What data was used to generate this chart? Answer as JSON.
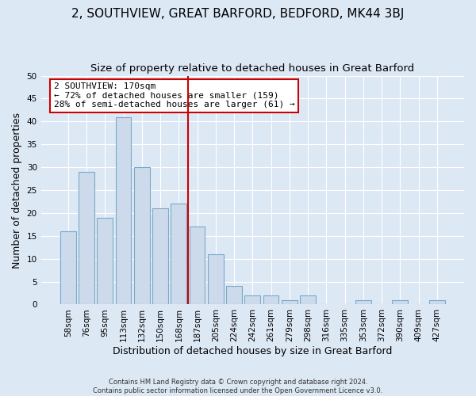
{
  "title": "2, SOUTHVIEW, GREAT BARFORD, BEDFORD, MK44 3BJ",
  "subtitle": "Size of property relative to detached houses in Great Barford",
  "xlabel": "Distribution of detached houses by size in Great Barford",
  "ylabel": "Number of detached properties",
  "footer_line1": "Contains HM Land Registry data © Crown copyright and database right 2024.",
  "footer_line2": "Contains public sector information licensed under the Open Government Licence v3.0.",
  "categories": [
    "58sqm",
    "76sqm",
    "95sqm",
    "113sqm",
    "132sqm",
    "150sqm",
    "168sqm",
    "187sqm",
    "205sqm",
    "224sqm",
    "242sqm",
    "261sqm",
    "279sqm",
    "298sqm",
    "316sqm",
    "335sqm",
    "353sqm",
    "372sqm",
    "390sqm",
    "409sqm",
    "427sqm"
  ],
  "values": [
    16,
    29,
    19,
    41,
    30,
    21,
    22,
    17,
    11,
    4,
    2,
    2,
    1,
    2,
    0,
    0,
    1,
    0,
    1,
    0,
    1
  ],
  "bar_color": "#ccdaeb",
  "bar_edge_color": "#7aaac8",
  "vline_x": 6.5,
  "vline_color": "#cc0000",
  "annotation_text": "2 SOUTHVIEW: 170sqm\n← 72% of detached houses are smaller (159)\n28% of semi-detached houses are larger (61) →",
  "annotation_box_color": "#ffffff",
  "annotation_box_edge": "#cc0000",
  "ylim": [
    0,
    50
  ],
  "yticks": [
    0,
    5,
    10,
    15,
    20,
    25,
    30,
    35,
    40,
    45,
    50
  ],
  "background_color": "#dde8f5",
  "grid_color": "#ffffff",
  "title_fontsize": 11,
  "subtitle_fontsize": 9.5,
  "axis_label_fontsize": 9,
  "tick_fontsize": 7.5,
  "footer_fontsize": 6,
  "annotation_fontsize": 8
}
